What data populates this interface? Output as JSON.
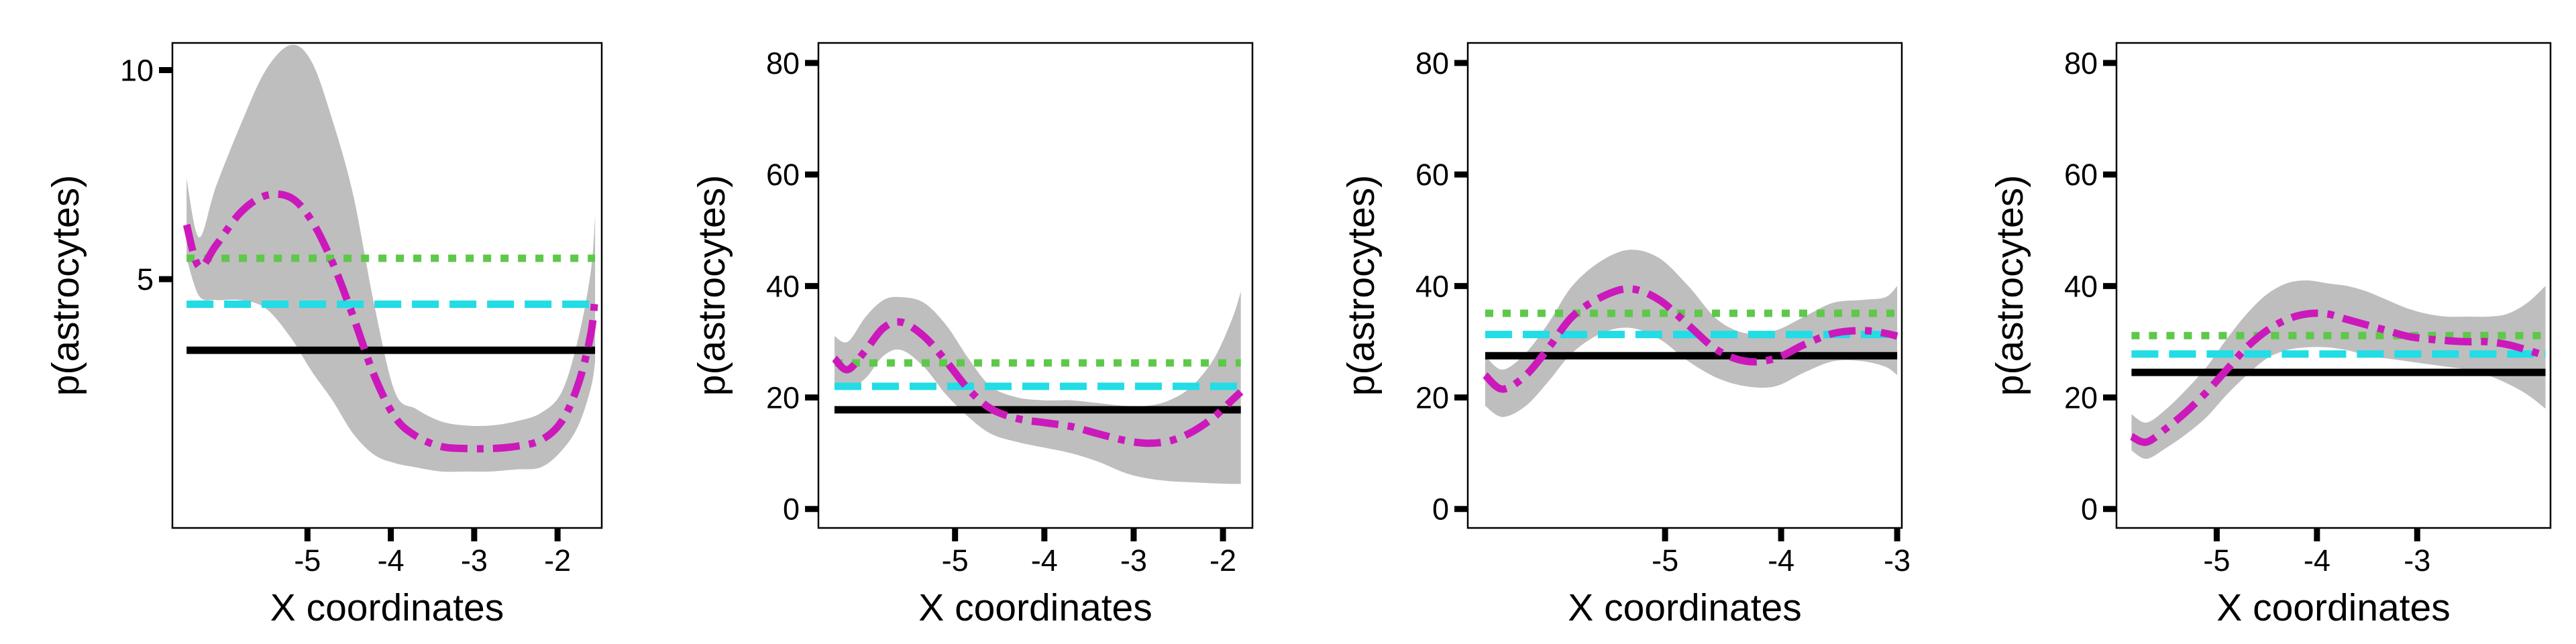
{
  "colors": {
    "black_line": "#000000",
    "cyan_line": "#22dce6",
    "green_line": "#5ec84a",
    "magenta_line": "#cc19bb",
    "ribbon": "#bebebe"
  },
  "chart_data": [
    {
      "type": "line",
      "xlabel": "X coordinates",
      "ylabel": "p(astrocytes)",
      "x_ticks": [
        -5,
        -4,
        -3,
        -2
      ],
      "x_tick_labels": [
        "-5",
        "-4",
        "-3",
        "-2"
      ],
      "y_ticks": [
        5,
        10
      ],
      "y_tick_labels": [
        "5",
        "10"
      ],
      "xlim": [
        -6.62,
        -1.47
      ],
      "ylim": [
        -0.95,
        10.65
      ],
      "grid": false,
      "hlines": [
        {
          "style": "solid",
          "color": "#000000",
          "y": 3.3,
          "x_range": [
            -6.45,
            -1.55
          ]
        },
        {
          "style": "long-dash",
          "color": "#22dce6",
          "y": 4.4,
          "x_range": [
            -6.45,
            -1.55
          ]
        },
        {
          "style": "dotted",
          "color": "#5ec84a",
          "y": 5.5,
          "x_range": [
            -6.45,
            -1.55
          ]
        }
      ],
      "smooth": {
        "style": "dash-dot",
        "color": "#cc19bb",
        "x": [
          -6.45,
          -6.3,
          -6.1,
          -5.8,
          -5.5,
          -5.2,
          -4.95,
          -4.7,
          -4.45,
          -4.2,
          -3.95,
          -3.7,
          -3.4,
          -3.1,
          -2.8,
          -2.5,
          -2.2,
          -1.95,
          -1.75,
          -1.6,
          -1.55
        ],
        "y": [
          6.3,
          5.3,
          5.8,
          6.6,
          7.0,
          6.95,
          6.4,
          5.4,
          4.1,
          2.7,
          1.7,
          1.25,
          1.0,
          0.95,
          0.95,
          1.0,
          1.15,
          1.6,
          2.5,
          3.7,
          4.6
        ],
        "ribbon_upper": [
          7.4,
          6.0,
          7.2,
          8.7,
          10.0,
          10.6,
          10.2,
          8.8,
          7.0,
          4.4,
          2.3,
          1.9,
          1.6,
          1.5,
          1.5,
          1.6,
          1.8,
          2.3,
          3.6,
          5.2,
          6.5
        ],
        "ribbon_lower": [
          5.5,
          4.6,
          4.5,
          4.5,
          4.3,
          3.6,
          2.8,
          2.1,
          1.3,
          0.8,
          0.6,
          0.5,
          0.4,
          0.4,
          0.4,
          0.45,
          0.5,
          0.9,
          1.5,
          2.4,
          3.0
        ]
      }
    },
    {
      "type": "line",
      "xlabel": "X coordinates",
      "ylabel": "p(astrocytes)",
      "x_ticks": [
        -5,
        -4,
        -3,
        -2
      ],
      "x_tick_labels": [
        "-5",
        "-4",
        "-3",
        "-2"
      ],
      "y_ticks": [
        0,
        20,
        40,
        60,
        80
      ],
      "y_tick_labels": [
        "0",
        "20",
        "40",
        "60",
        "80"
      ],
      "xlim": [
        -6.53,
        -1.67
      ],
      "ylim": [
        -3.4,
        83.6
      ],
      "grid": false,
      "hlines": [
        {
          "style": "solid",
          "color": "#000000",
          "y": 17.8,
          "x_range": [
            -6.35,
            -1.8
          ]
        },
        {
          "style": "long-dash",
          "color": "#22dce6",
          "y": 22.0,
          "x_range": [
            -6.35,
            -1.8
          ]
        },
        {
          "style": "dotted",
          "color": "#5ec84a",
          "y": 26.2,
          "x_range": [
            -6.35,
            -1.8
          ]
        }
      ],
      "smooth": {
        "style": "dash-dot",
        "color": "#cc19bb",
        "x": [
          -6.35,
          -6.2,
          -6.0,
          -5.8,
          -5.6,
          -5.35,
          -5.1,
          -4.85,
          -4.6,
          -4.3,
          -4.0,
          -3.7,
          -3.4,
          -3.1,
          -2.85,
          -2.6,
          -2.35,
          -2.1,
          -1.9,
          -1.8
        ],
        "y": [
          27.0,
          25.0,
          28.5,
          32.5,
          33.5,
          31.0,
          26.5,
          21.5,
          18.0,
          16.2,
          15.5,
          14.8,
          13.5,
          12.3,
          11.8,
          12.2,
          13.8,
          16.5,
          19.5,
          21.0
        ],
        "ribbon_upper": [
          31.0,
          30.0,
          34.5,
          37.5,
          38.0,
          37.0,
          33.0,
          27.0,
          22.0,
          20.0,
          19.5,
          19.5,
          19.0,
          18.5,
          18.5,
          19.5,
          22.0,
          27.0,
          34.0,
          39.0
        ],
        "ribbon_lower": [
          22.5,
          21.5,
          23.5,
          27.5,
          28.5,
          25.5,
          20.5,
          16.5,
          13.5,
          12.0,
          11.0,
          10.0,
          8.5,
          6.5,
          5.5,
          5.0,
          4.8,
          4.6,
          4.5,
          4.5
        ]
      }
    },
    {
      "type": "line",
      "xlabel": "X coordinates",
      "ylabel": "p(astrocytes)",
      "x_ticks": [
        -5,
        -4,
        -3
      ],
      "x_tick_labels": [
        "-5",
        "-4",
        "-3"
      ],
      "y_ticks": [
        0,
        20,
        40,
        60,
        80
      ],
      "y_tick_labels": [
        "0",
        "20",
        "40",
        "60",
        "80"
      ],
      "xlim": [
        -6.7,
        -2.96
      ],
      "ylim": [
        -3.4,
        83.6
      ],
      "grid": false,
      "hlines": [
        {
          "style": "solid",
          "color": "#000000",
          "y": 27.5,
          "x_range": [
            -6.55,
            -3.0
          ]
        },
        {
          "style": "long-dash",
          "color": "#22dce6",
          "y": 31.3,
          "x_range": [
            -6.55,
            -3.0
          ]
        },
        {
          "style": "dotted",
          "color": "#5ec84a",
          "y": 35.1,
          "x_range": [
            -6.55,
            -3.0
          ]
        }
      ],
      "smooth": {
        "style": "dash-dot",
        "color": "#cc19bb",
        "x": [
          -6.55,
          -6.4,
          -6.2,
          -6.0,
          -5.8,
          -5.55,
          -5.3,
          -5.05,
          -4.8,
          -4.55,
          -4.3,
          -4.05,
          -3.8,
          -3.55,
          -3.3,
          -3.1,
          -3.0
        ],
        "y": [
          24.0,
          21.5,
          24.0,
          29.0,
          34.5,
          38.0,
          39.5,
          37.5,
          33.0,
          28.5,
          26.5,
          27.0,
          29.5,
          31.5,
          32.0,
          31.5,
          31.0
        ],
        "ribbon_upper": [
          27.5,
          25.0,
          28.0,
          33.5,
          40.0,
          44.5,
          46.5,
          45.0,
          40.0,
          34.0,
          31.5,
          32.0,
          34.5,
          37.0,
          37.5,
          38.0,
          40.0
        ],
        "ribbon_lower": [
          18.5,
          16.5,
          18.5,
          23.0,
          28.0,
          31.5,
          32.5,
          30.5,
          26.5,
          23.5,
          22.0,
          22.0,
          24.5,
          26.5,
          26.5,
          25.5,
          24.0
        ]
      }
    },
    {
      "type": "line",
      "xlabel": "X coordinates",
      "ylabel": "p(astrocytes)",
      "x_ticks": [
        -5,
        -4,
        -3
      ],
      "x_tick_labels": [
        "-5",
        "-4",
        "-3"
      ],
      "y_ticks": [
        0,
        20,
        40,
        60,
        80
      ],
      "y_tick_labels": [
        "0",
        "20",
        "40",
        "60",
        "80"
      ],
      "xlim": [
        -6.0,
        -1.67
      ],
      "ylim": [
        -3.4,
        83.6
      ],
      "grid": false,
      "hlines": [
        {
          "style": "solid",
          "color": "#000000",
          "y": 24.5,
          "x_range": [
            -5.85,
            -1.72
          ]
        },
        {
          "style": "long-dash",
          "color": "#22dce6",
          "y": 27.8,
          "x_range": [
            -5.85,
            -1.72
          ]
        },
        {
          "style": "dotted",
          "color": "#5ec84a",
          "y": 31.1,
          "x_range": [
            -5.85,
            -1.72
          ]
        }
      ],
      "smooth": {
        "style": "dash-dot",
        "color": "#cc19bb",
        "x": [
          -5.85,
          -5.7,
          -5.5,
          -5.3,
          -5.1,
          -4.9,
          -4.7,
          -4.5,
          -4.3,
          -4.1,
          -3.9,
          -3.7,
          -3.5,
          -3.3,
          -3.1,
          -2.9,
          -2.7,
          -2.5,
          -2.3,
          -2.1,
          -1.9,
          -1.72
        ],
        "y": [
          13.0,
          12.0,
          14.5,
          17.5,
          21.0,
          25.0,
          29.0,
          32.0,
          34.0,
          35.0,
          35.0,
          34.0,
          33.0,
          32.0,
          31.0,
          30.5,
          30.2,
          30.0,
          30.0,
          29.5,
          28.5,
          27.5
        ],
        "ribbon_upper": [
          17.0,
          15.5,
          18.0,
          21.5,
          25.5,
          30.5,
          35.0,
          38.5,
          40.5,
          41.0,
          40.5,
          40.0,
          39.0,
          37.5,
          36.0,
          35.0,
          34.5,
          34.5,
          34.5,
          35.0,
          37.0,
          40.0
        ],
        "ribbon_lower": [
          10.5,
          9.0,
          11.0,
          13.5,
          16.5,
          20.5,
          24.0,
          27.0,
          28.5,
          29.0,
          29.0,
          28.5,
          27.5,
          27.0,
          26.5,
          26.0,
          25.5,
          25.0,
          24.0,
          22.5,
          20.5,
          18.0
        ]
      }
    }
  ]
}
